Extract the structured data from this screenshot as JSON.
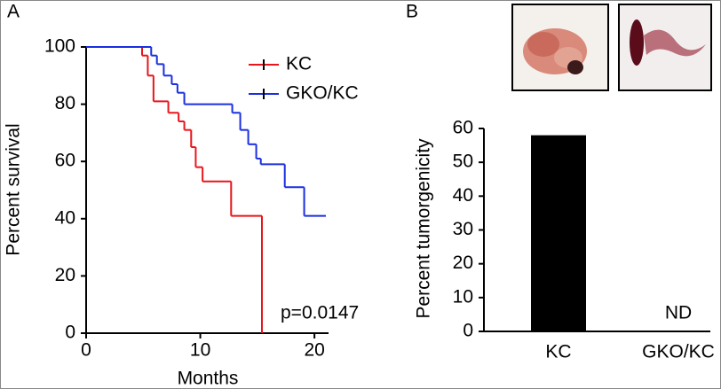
{
  "chart_data": [
    {
      "type": "line",
      "step": true,
      "panel_label": "A",
      "x_label": "Months",
      "y_label": "Percent survival",
      "xlim": [
        0,
        21
      ],
      "xticks": [
        0,
        10,
        20
      ],
      "ylim": [
        0,
        100
      ],
      "yticks": [
        0,
        20,
        40,
        60,
        80,
        100
      ],
      "legend": "upper right",
      "annotation": "p=0.0147",
      "series": [
        {
          "name": "KC",
          "color": "#e8151b",
          "x": [
            0,
            4.9,
            5.4,
            5.9,
            7.2,
            8.1,
            8.6,
            9.2,
            9.6,
            10.2,
            12.7,
            15.4
          ],
          "values": [
            100,
            97,
            90,
            81,
            77,
            74,
            71,
            65,
            58,
            53,
            41,
            0
          ]
        },
        {
          "name": "GKO/KC",
          "color": "#1a2fe0",
          "x": [
            0,
            5.7,
            6.2,
            6.8,
            7.5,
            8.0,
            8.6,
            12.8,
            13.5,
            14.2,
            14.9,
            15.3,
            17.4,
            19.1,
            21
          ],
          "values": [
            100,
            97,
            94,
            90,
            87,
            84,
            80,
            77,
            71,
            66,
            61,
            59,
            51,
            41,
            41
          ]
        }
      ]
    },
    {
      "type": "bar",
      "panel_label": "B",
      "y_label": "Percent tumorgenicity",
      "categories": [
        "KC",
        "GKO/KC"
      ],
      "values": [
        58,
        null
      ],
      "value_labels": [
        null,
        "ND"
      ],
      "color": "#000000",
      "ylim": [
        0,
        60
      ],
      "yticks": [
        0,
        10,
        20,
        30,
        40,
        50,
        60
      ]
    }
  ]
}
